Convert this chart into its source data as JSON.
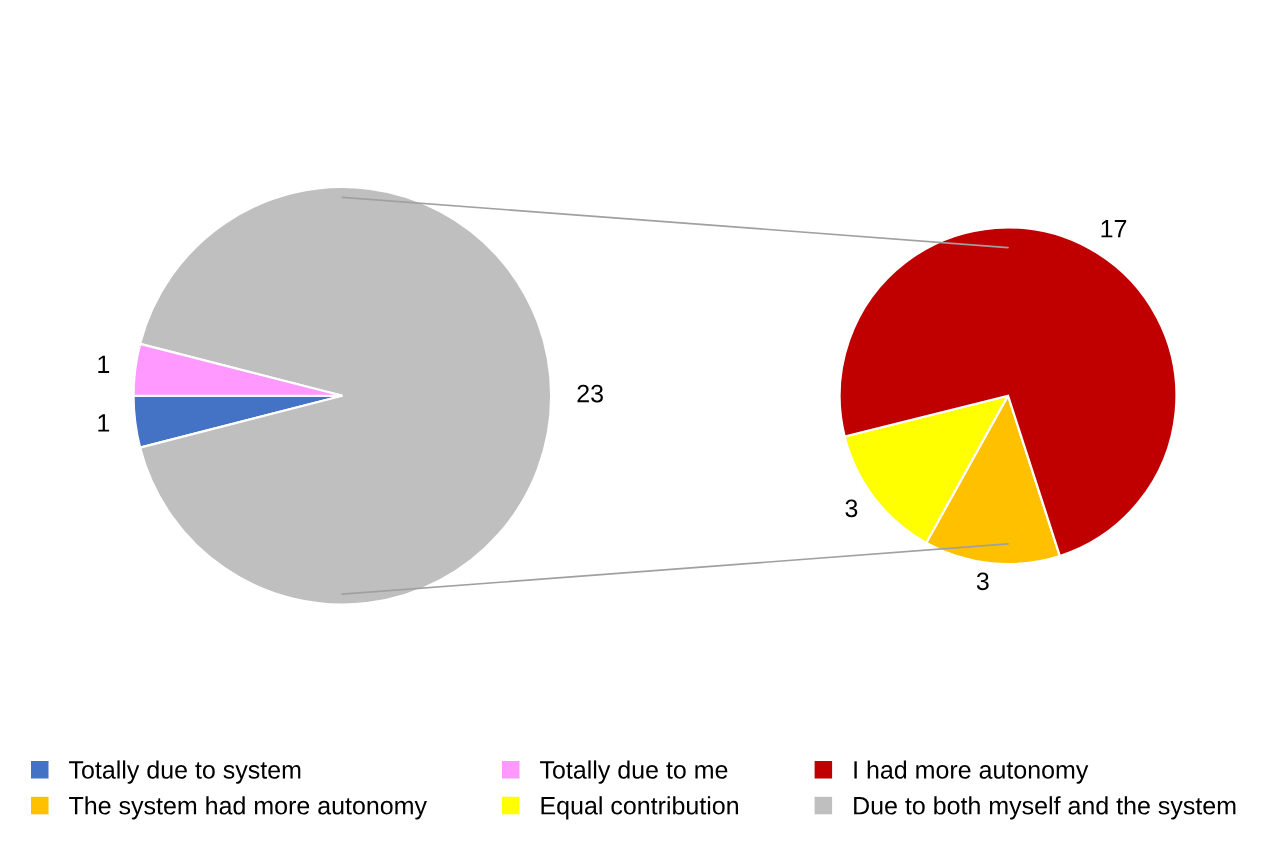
{
  "chart_data": [
    {
      "type": "pie",
      "categories": [
        "Totally due to system",
        "Due to both myself and the system",
        "Totally due to me"
      ],
      "values": [
        1,
        23,
        1
      ],
      "colors": [
        "#4472c4",
        "#bfbfbf",
        "#ff99ff"
      ],
      "data_labels": true,
      "legend": "bottom"
    },
    {
      "type": "pie",
      "categories": [
        "Equal contribution",
        "The system had more autonomy",
        "I had more autonomy"
      ],
      "values": [
        3,
        3,
        17
      ],
      "colors": [
        "#ffff00",
        "#ffc000",
        "#c00000"
      ],
      "data_labels": true,
      "legend": "bottom"
    }
  ]
}
